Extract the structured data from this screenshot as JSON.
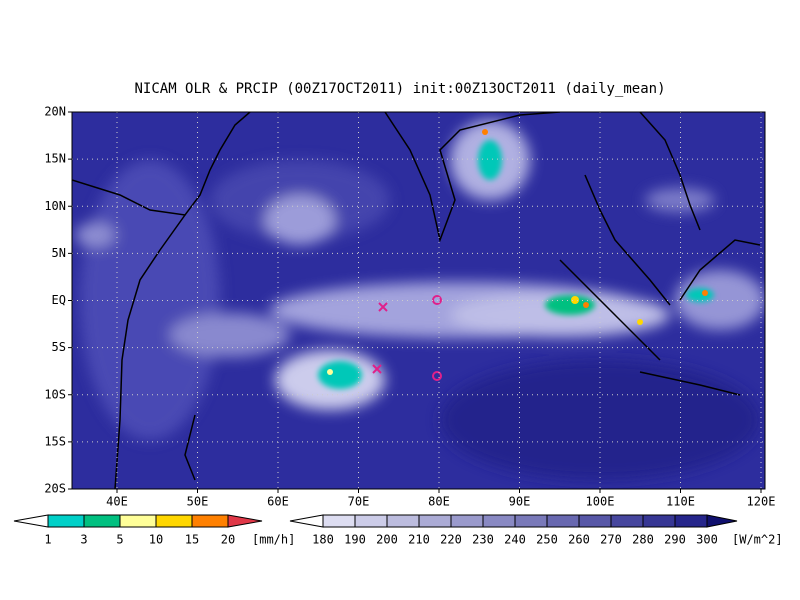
{
  "title": "NICAM OLR & PRCIP (00Z17OCT2011) init:00Z13OCT2011 (daily_mean)",
  "lat_labels": [
    "20N",
    "15N",
    "10N",
    "5N",
    "EQ",
    "5S",
    "10S",
    "15S",
    "20S"
  ],
  "lon_labels": [
    "40E",
    "50E",
    "60E",
    "70E",
    "80E",
    "90E",
    "100E",
    "110E",
    "120E"
  ],
  "precip_legend": {
    "labels": [
      "1",
      "3",
      "5",
      "10",
      "15",
      "20"
    ],
    "unit": "[mm/h]"
  },
  "olr_legend": {
    "labels": [
      "180",
      "190",
      "200",
      "210",
      "220",
      "230",
      "240",
      "250",
      "260",
      "270",
      "280",
      "290",
      "300"
    ],
    "unit": "[W/m^2]"
  }
}
